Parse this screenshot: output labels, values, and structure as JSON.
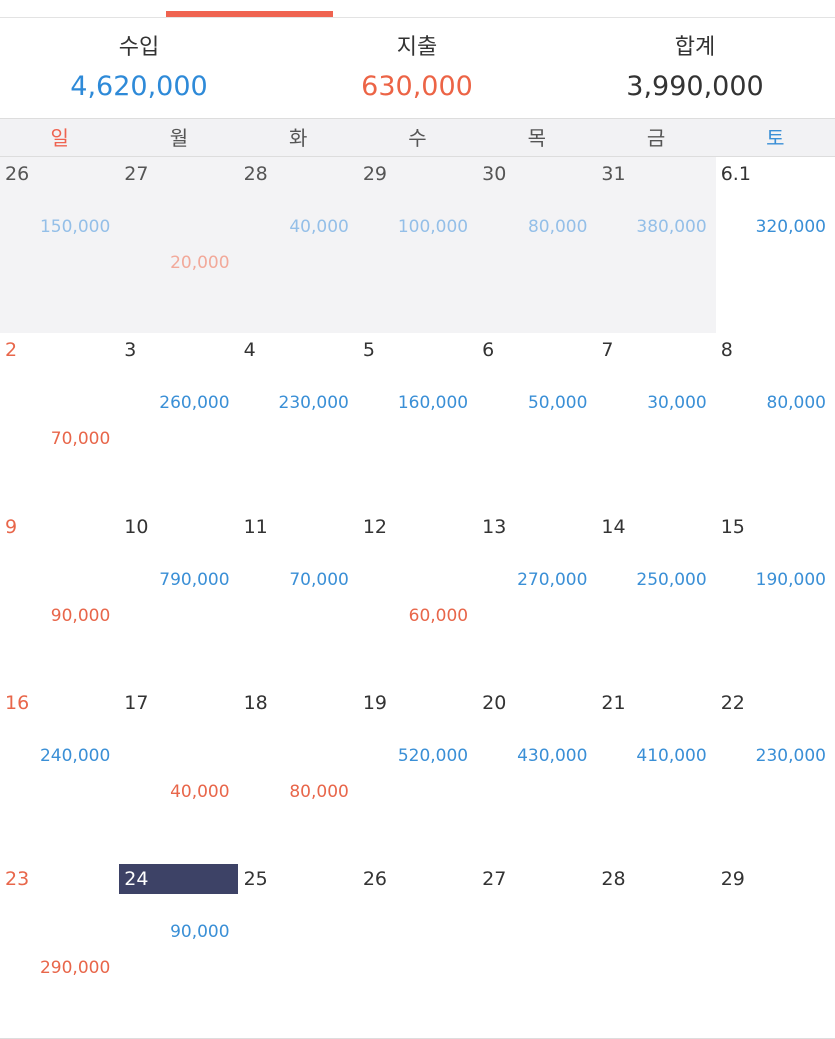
{
  "summary": [
    {
      "label": "수입",
      "value": "4,620,000"
    },
    {
      "label": "지출",
      "value": "630,000"
    },
    {
      "label": "합계",
      "value": "3,990,000"
    }
  ],
  "weekdays": [
    "일",
    "월",
    "화",
    "수",
    "목",
    "금",
    "토"
  ],
  "weeks": [
    [
      {
        "day": "26",
        "income": "150,000"
      },
      {
        "day": "27",
        "expense": "20,000"
      },
      {
        "day": "28",
        "income": "40,000"
      },
      {
        "day": "29",
        "income": "100,000"
      },
      {
        "day": "30",
        "income": "80,000"
      },
      {
        "day": "31",
        "income": "380,000"
      },
      {
        "day": "6.1",
        "income": "320,000"
      }
    ],
    [
      {
        "day": "2",
        "expense": "70,000"
      },
      {
        "day": "3",
        "income": "260,000"
      },
      {
        "day": "4",
        "income": "230,000"
      },
      {
        "day": "5",
        "income": "160,000"
      },
      {
        "day": "6",
        "income": "50,000"
      },
      {
        "day": "7",
        "income": "30,000"
      },
      {
        "day": "8",
        "income": "80,000"
      }
    ],
    [
      {
        "day": "9",
        "expense": "90,000"
      },
      {
        "day": "10",
        "income": "790,000"
      },
      {
        "day": "11",
        "income": "70,000"
      },
      {
        "day": "12",
        "expense": "60,000"
      },
      {
        "day": "13",
        "income": "270,000"
      },
      {
        "day": "14",
        "income": "250,000"
      },
      {
        "day": "15",
        "income": "190,000"
      }
    ],
    [
      {
        "day": "16",
        "income": "240,000"
      },
      {
        "day": "17",
        "expense": "40,000"
      },
      {
        "day": "18",
        "expense": "80,000"
      },
      {
        "day": "19",
        "income": "520,000"
      },
      {
        "day": "20",
        "income": "430,000"
      },
      {
        "day": "21",
        "income": "410,000"
      },
      {
        "day": "22",
        "income": "230,000"
      }
    ],
    [
      {
        "day": "23",
        "expense": "290,000"
      },
      {
        "day": "24",
        "income": "90,000"
      },
      {
        "day": "25"
      },
      {
        "day": "26"
      },
      {
        "day": "27"
      },
      {
        "day": "28"
      },
      {
        "day": "29"
      }
    ]
  ]
}
